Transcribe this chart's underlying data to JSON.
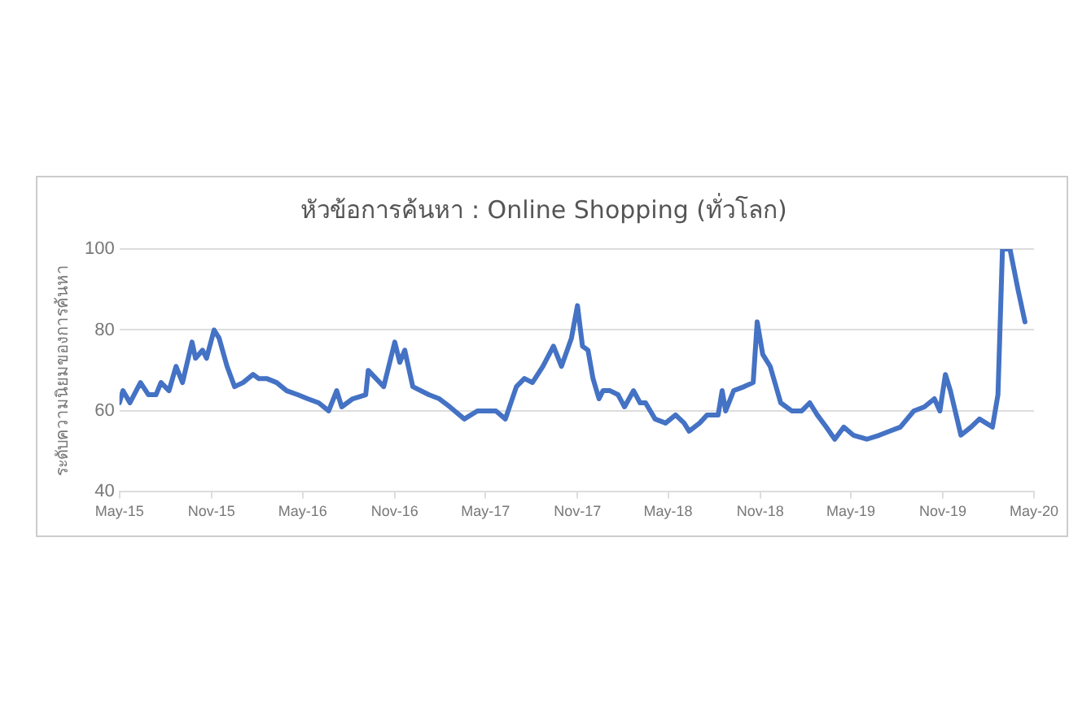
{
  "chart_data": {
    "type": "line",
    "title": "หัวข้อการค้นหา : Online Shopping (ทั่วโลก)",
    "ylabel": "ระดับความนิยมของการค้นหา",
    "x": [
      "2015-05-01",
      "2015-05-08",
      "2015-05-22",
      "2015-06-12",
      "2015-06-28",
      "2015-07-13",
      "2015-07-23",
      "2015-08-08",
      "2015-08-22",
      "2015-09-04",
      "2015-09-23",
      "2015-09-30",
      "2015-10-14",
      "2015-10-22",
      "2015-11-06",
      "2015-11-16",
      "2015-12-02",
      "2015-12-17",
      "2016-01-03",
      "2016-01-23",
      "2016-02-03",
      "2016-02-19",
      "2016-03-10",
      "2016-03-30",
      "2016-04-21",
      "2016-05-11",
      "2016-06-02",
      "2016-06-22",
      "2016-07-08",
      "2016-07-18",
      "2016-08-09",
      "2016-09-04",
      "2016-09-09",
      "2016-10-10",
      "2016-11-01",
      "2016-11-11",
      "2016-11-21",
      "2016-12-07",
      "2017-01-08",
      "2017-01-29",
      "2017-02-19",
      "2017-03-20",
      "2017-04-15",
      "2017-05-01",
      "2017-05-22",
      "2017-06-10",
      "2017-07-02",
      "2017-07-18",
      "2017-08-03",
      "2017-08-24",
      "2017-09-14",
      "2017-09-30",
      "2017-10-20",
      "2017-11-01",
      "2017-11-11",
      "2017-11-22",
      "2017-12-02",
      "2017-12-14",
      "2017-12-22",
      "2018-01-05",
      "2018-01-21",
      "2018-02-03",
      "2018-02-21",
      "2018-03-06",
      "2018-03-17",
      "2018-04-05",
      "2018-04-26",
      "2018-05-16",
      "2018-06-02",
      "2018-06-12",
      "2018-07-03",
      "2018-07-18",
      "2018-08-09",
      "2018-08-17",
      "2018-08-24",
      "2018-09-09",
      "2018-09-30",
      "2018-10-18",
      "2018-10-26",
      "2018-11-06",
      "2018-11-21",
      "2018-12-12",
      "2019-01-03",
      "2019-01-23",
      "2019-02-08",
      "2019-02-23",
      "2019-03-13",
      "2019-03-30",
      "2019-04-17",
      "2019-05-06",
      "2019-06-02",
      "2019-06-27",
      "2019-07-18",
      "2019-08-08",
      "2019-09-04",
      "2019-09-25",
      "2019-10-15",
      "2019-10-26",
      "2019-11-06",
      "2019-11-16",
      "2019-12-07",
      "2019-12-27",
      "2020-01-13",
      "2020-02-08",
      "2020-02-19",
      "2020-02-28",
      "2020-03-14",
      "2020-03-30",
      "2020-04-13"
    ],
    "series": [
      {
        "color": "#4472c4",
        "values": [
          62,
          65,
          62,
          67,
          64,
          64,
          67,
          65,
          71,
          67,
          77,
          73,
          75,
          73,
          80,
          78,
          71,
          66,
          67,
          69,
          68,
          68,
          67,
          65,
          64,
          63,
          62,
          60,
          65,
          61,
          63,
          64,
          70,
          66,
          77,
          72,
          75,
          66,
          64,
          63,
          61,
          58,
          60,
          60,
          60,
          58,
          66,
          68,
          67,
          71,
          76,
          71,
          78,
          86,
          76,
          75,
          68,
          63,
          65,
          65,
          64,
          61,
          65,
          62,
          62,
          58,
          57,
          59,
          57,
          55,
          57,
          59,
          59,
          65,
          60,
          65,
          66,
          67,
          82,
          74,
          71,
          62,
          60,
          60,
          62,
          59,
          56,
          53,
          56,
          54,
          53,
          54,
          55,
          56,
          60,
          61,
          63,
          60,
          69,
          65,
          54,
          56,
          58,
          56,
          64,
          100,
          100,
          90,
          82
        ]
      }
    ],
    "xlim": [
      "2015-05-01",
      "2020-05-01"
    ],
    "xticks": [
      {
        "value": "2015-05-01",
        "label": "May-15"
      },
      {
        "value": "2015-11-01",
        "label": "Nov-15"
      },
      {
        "value": "2016-05-01",
        "label": "May-16"
      },
      {
        "value": "2016-11-01",
        "label": "Nov-16"
      },
      {
        "value": "2017-05-01",
        "label": "May-17"
      },
      {
        "value": "2017-11-01",
        "label": "Nov-17"
      },
      {
        "value": "2018-05-01",
        "label": "May-18"
      },
      {
        "value": "2018-11-01",
        "label": "Nov-18"
      },
      {
        "value": "2019-05-01",
        "label": "May-19"
      },
      {
        "value": "2019-11-01",
        "label": "Nov-19"
      },
      {
        "value": "2020-05-01",
        "label": "May-20"
      }
    ],
    "ylim": [
      40,
      100
    ],
    "yticks": [
      40,
      60,
      80,
      100
    ],
    "grid": "y",
    "legend": false,
    "marker": "none",
    "line_style": "solid"
  }
}
